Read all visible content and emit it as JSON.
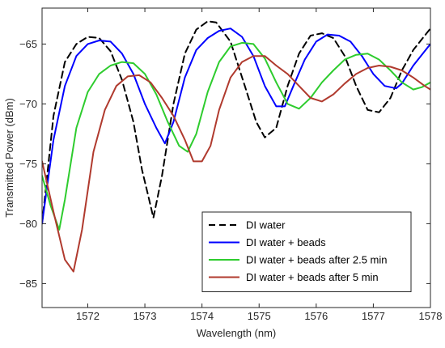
{
  "chart_data": {
    "type": "line",
    "xlabel": "Wavelength (nm)",
    "ylabel": "Transmitted Power (dBm)",
    "xlim": [
      1571.2,
      1578.0
    ],
    "ylim": [
      -87,
      -62
    ],
    "xticks": [
      1572,
      1573,
      1574,
      1575,
      1576,
      1577,
      1578
    ],
    "yticks": [
      -85,
      -80,
      -75,
      -70,
      -65
    ],
    "grid": false,
    "legend_position": "bottom-right",
    "series": [
      {
        "name": "DI water",
        "color": "#000000",
        "dash": "dashed",
        "x": [
          1571.2,
          1571.4,
          1571.6,
          1571.8,
          1572.0,
          1572.2,
          1572.4,
          1572.6,
          1572.8,
          1572.95,
          1573.05,
          1573.15,
          1573.3,
          1573.5,
          1573.7,
          1573.9,
          1574.1,
          1574.25,
          1574.5,
          1574.75,
          1574.95,
          1575.1,
          1575.3,
          1575.5,
          1575.7,
          1575.9,
          1576.1,
          1576.3,
          1576.5,
          1576.7,
          1576.9,
          1577.1,
          1577.3,
          1577.5,
          1577.7,
          1577.9,
          1578.0
        ],
        "y": [
          -80,
          -71,
          -66.5,
          -65,
          -64.4,
          -64.5,
          -65.6,
          -68,
          -71.5,
          -75.5,
          -77.5,
          -79.5,
          -76,
          -70,
          -65.8,
          -63.8,
          -63.1,
          -63.2,
          -64.8,
          -68.5,
          -71.5,
          -72.8,
          -72,
          -68.5,
          -65.8,
          -64.3,
          -64.1,
          -64.5,
          -66,
          -68.5,
          -70.5,
          -70.7,
          -69.5,
          -67.2,
          -65.5,
          -64.3,
          -63.7
        ]
      },
      {
        "name": "DI water + beads",
        "color": "#0000ff",
        "dash": "solid",
        "x": [
          1571.2,
          1571.4,
          1571.6,
          1571.8,
          1572.0,
          1572.2,
          1572.4,
          1572.6,
          1572.8,
          1573.0,
          1573.2,
          1573.35,
          1573.5,
          1573.7,
          1573.9,
          1574.1,
          1574.3,
          1574.5,
          1574.7,
          1574.9,
          1575.1,
          1575.3,
          1575.45,
          1575.6,
          1575.8,
          1576.0,
          1576.2,
          1576.4,
          1576.6,
          1576.8,
          1577.0,
          1577.2,
          1577.4,
          1577.5,
          1577.7,
          1577.9,
          1578.0
        ],
        "y": [
          -80,
          -73,
          -68.5,
          -66,
          -65,
          -64.7,
          -64.8,
          -65.8,
          -67.5,
          -70,
          -72,
          -73.3,
          -71.5,
          -67.8,
          -65.5,
          -64.5,
          -63.9,
          -63.7,
          -64.4,
          -66,
          -68.5,
          -70.2,
          -70.2,
          -68.5,
          -66.3,
          -64.8,
          -64.2,
          -64.3,
          -64.8,
          -66,
          -67.5,
          -68.5,
          -68.7,
          -68.3,
          -66.8,
          -65.6,
          -65
        ]
      },
      {
        "name": "DI water + beads after 2.5 min",
        "color": "#2ecc2e",
        "dash": "solid",
        "x": [
          1571.2,
          1571.35,
          1571.5,
          1571.6,
          1571.8,
          1572.0,
          1572.2,
          1572.4,
          1572.6,
          1572.8,
          1573.0,
          1573.2,
          1573.4,
          1573.6,
          1573.75,
          1573.9,
          1574.1,
          1574.3,
          1574.5,
          1574.7,
          1574.9,
          1575.1,
          1575.3,
          1575.5,
          1575.7,
          1575.9,
          1576.1,
          1576.3,
          1576.5,
          1576.7,
          1576.9,
          1577.1,
          1577.3,
          1577.5,
          1577.7,
          1577.85,
          1578.0
        ],
        "y": [
          -76,
          -78.5,
          -80.5,
          -78,
          -72,
          -69,
          -67.5,
          -66.8,
          -66.5,
          -66.6,
          -67.5,
          -69.2,
          -71.5,
          -73.5,
          -74,
          -72.5,
          -69,
          -66.5,
          -65.2,
          -64.9,
          -65,
          -66.2,
          -68.2,
          -70,
          -70.4,
          -69.5,
          -68.2,
          -67.2,
          -66.3,
          -65.9,
          -65.8,
          -66.3,
          -67.2,
          -68.2,
          -68.8,
          -68.6,
          -68.2
        ]
      },
      {
        "name": "DI water + beads after 5 min",
        "color": "#b03a2e",
        "dash": "solid",
        "x": [
          1571.2,
          1571.4,
          1571.6,
          1571.75,
          1571.9,
          1572.1,
          1572.3,
          1572.5,
          1572.7,
          1572.9,
          1573.1,
          1573.3,
          1573.5,
          1573.7,
          1573.85,
          1574.0,
          1574.15,
          1574.3,
          1574.5,
          1574.7,
          1574.9,
          1575.1,
          1575.3,
          1575.5,
          1575.7,
          1575.9,
          1576.1,
          1576.3,
          1576.5,
          1576.7,
          1576.9,
          1577.1,
          1577.3,
          1577.5,
          1577.7,
          1577.9,
          1578.0
        ],
        "y": [
          -74.8,
          -79,
          -83,
          -84,
          -80.5,
          -74,
          -70.5,
          -68.5,
          -67.7,
          -67.6,
          -68.2,
          -69.5,
          -71,
          -73,
          -74.8,
          -74.8,
          -73.5,
          -70.5,
          -67.8,
          -66.5,
          -66,
          -66,
          -66.8,
          -67.5,
          -68.5,
          -69.5,
          -69.8,
          -69.2,
          -68.3,
          -67.5,
          -67,
          -66.8,
          -66.9,
          -67.2,
          -67.8,
          -68.5,
          -68.8
        ]
      }
    ]
  }
}
